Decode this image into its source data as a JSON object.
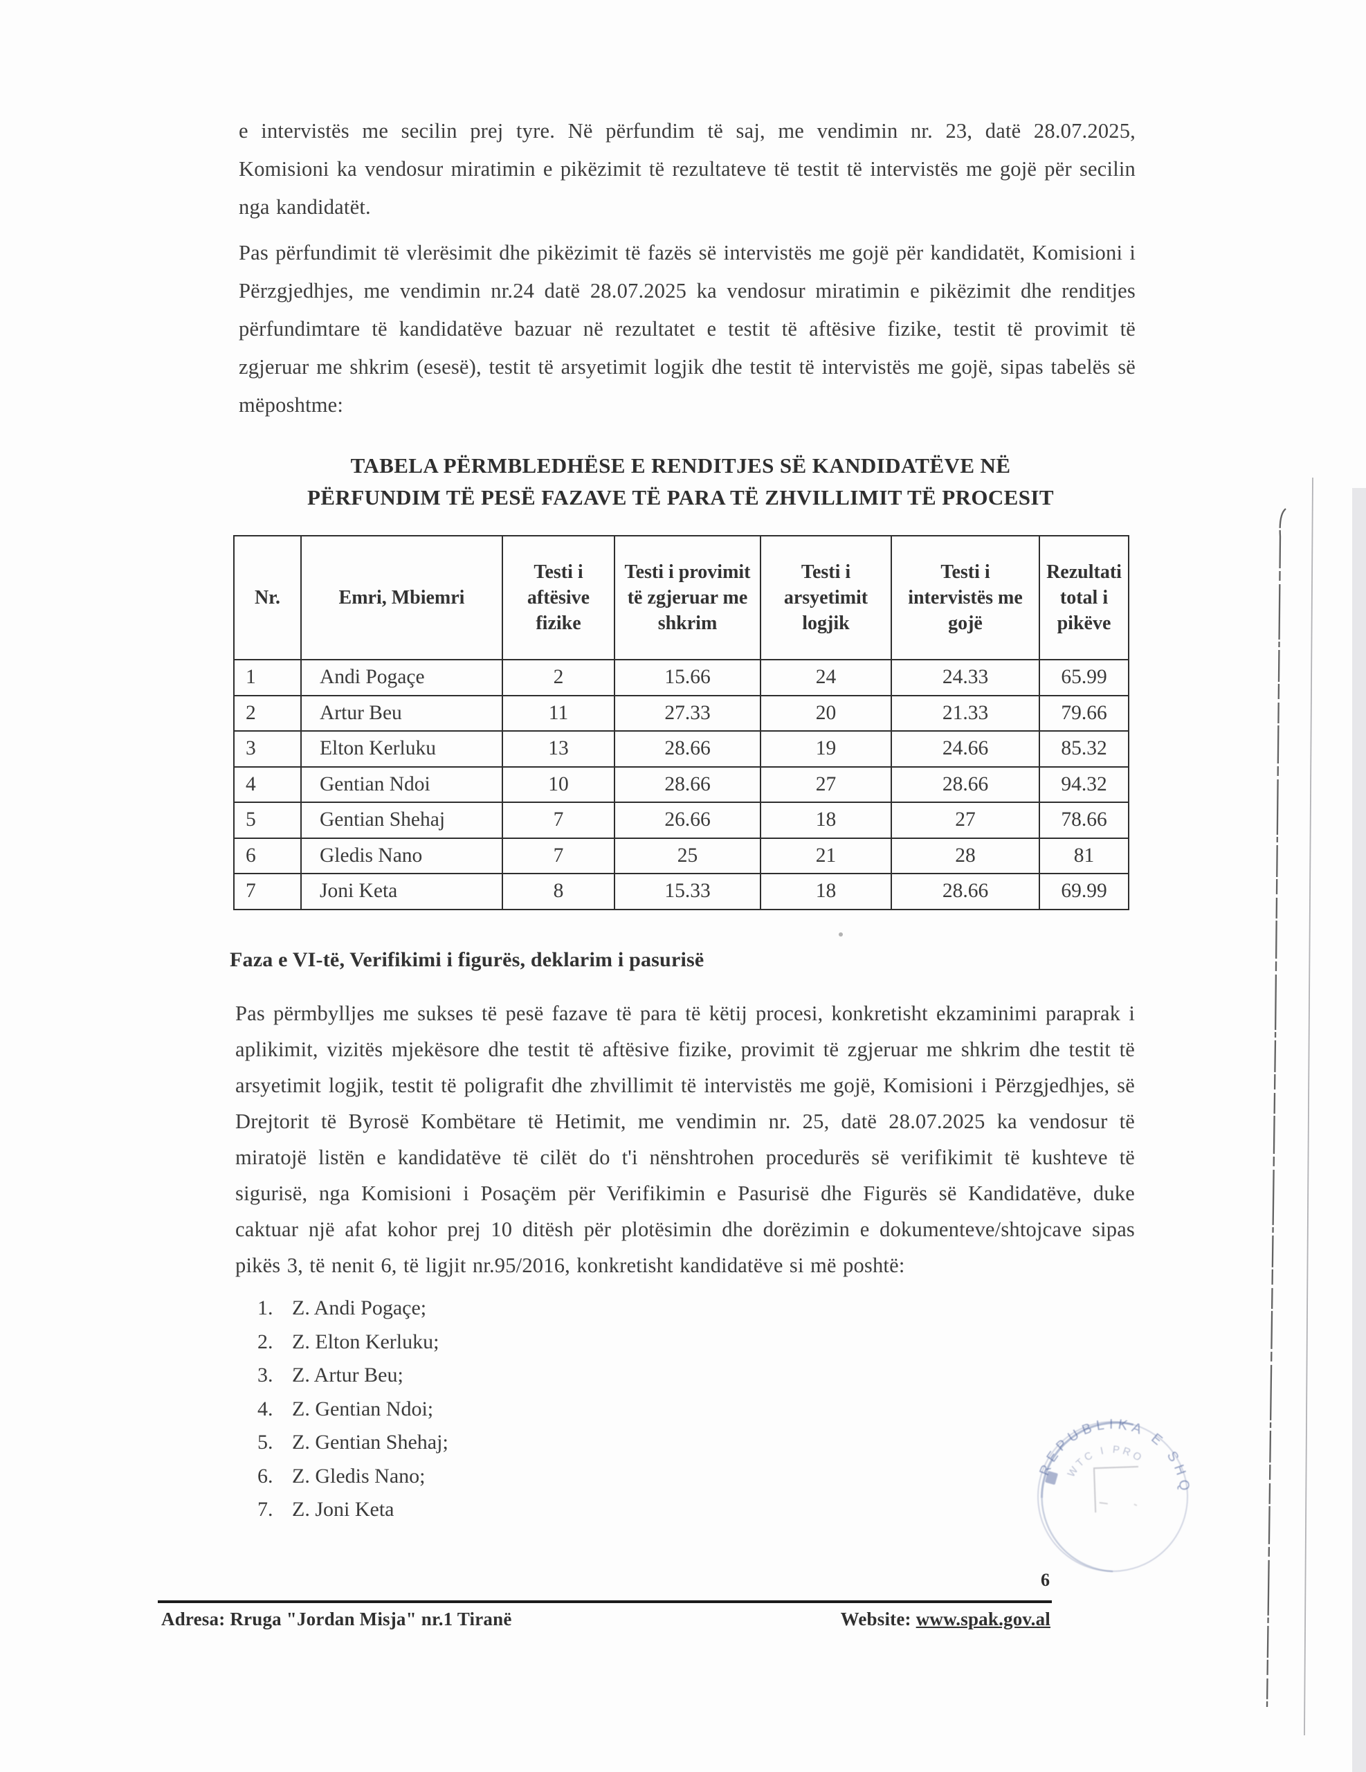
{
  "document": {
    "paragraphs": [
      "e intervistës me secilin prej tyre. Në përfundim të saj, me vendimin nr. 23, datë 28.07.2025, Komisioni ka vendosur miratimin e pikëzimit të rezultateve të testit të intervistës me gojë për secilin nga kandidatët.",
      "Pas përfundimit të vlerësimit dhe pikëzimit të fazës së intervistës me gojë për kandidatët, Komisioni i Përzgjedhjes, me vendimin nr.24 datë 28.07.2025 ka vendosur miratimin e pikëzimit dhe renditjes përfundimtare të kandidatëve bazuar në rezultatet e testit të aftësive fizike, testit të provimit të zgjeruar me shkrim (esesë), testit të arsyetimit logjik dhe testit të intervistës me gojë, sipas tabelës së mëposhtme:",
      "Pas përmbylljes me sukses të pesë fazave të para të këtij procesi, konkretisht ekzaminimi paraprak i aplikimit, vizitës mjekësore dhe testit të aftësive fizike, provimit të zgjeruar me shkrim dhe testit të arsyetimit logjik, testit të poligrafit dhe zhvillimit të intervistës me gojë, Komisioni i Përzgjedhjes, së Drejtorit të Byrosë Kombëtare të Hetimit, me vendimin nr. 25, datë 28.07.2025 ka vendosur të miratojë listën e kandidatëve të cilët do t'i nënshtrohen procedurës së verifikimit të kushteve të sigurisë, nga Komisioni i Posaçëm për Verifikimin e Pasurisë dhe Figurës së Kandidatëve, duke caktuar një afat kohor prej 10 ditësh për plotësimin  dhe dorëzimin e dokumenteve/shtojcave sipas pikës 3, të nenit 6, të ligjit nr.95/2016, konkretisht kandidatëve si më poshtë:"
    ],
    "table_title": [
      "TABELA PËRMBLEDHËSE E RENDITJES SË KANDIDATËVE NË",
      "PËRFUNDIM TË PESË FAZAVE TË PARA TË ZHVILLIMIT TË PROCESIT"
    ],
    "table": {
      "headers": [
        "Nr.",
        "Emri, Mbiemri",
        "Testi i aftësive fizike",
        "Testi i provimit të zgjeruar me shkrim",
        "Testi i arsyetimit logjik",
        "Testi i intervistës me gojë",
        "Rezultati total i pikëve"
      ],
      "rows": [
        [
          "1",
          "Andi Pogaçe",
          "2",
          "15.66",
          "24",
          "24.33",
          "65.99"
        ],
        [
          "2",
          "Artur Beu",
          "11",
          "27.33",
          "20",
          "21.33",
          "79.66"
        ],
        [
          "3",
          "Elton Kerluku",
          "13",
          "28.66",
          "19",
          "24.66",
          "85.32"
        ],
        [
          "4",
          "Gentian Ndoi",
          "10",
          "28.66",
          "27",
          "28.66",
          "94.32"
        ],
        [
          "5",
          "Gentian Shehaj",
          "7",
          "26.66",
          "18",
          "27",
          "78.66"
        ],
        [
          "6",
          "Gledis Nano",
          "7",
          "25",
          "21",
          "28",
          "81"
        ],
        [
          "7",
          "Joni Keta",
          "8",
          "15.33",
          "18",
          "28.66",
          "69.99"
        ]
      ]
    },
    "section_heading": "Faza e VI-të, Verifikimi i figurës, deklarim i pasurisë",
    "candidates": [
      {
        "no": "1.",
        "name": "Z. Andi Pogaçe;"
      },
      {
        "no": "2.",
        "name": "Z. Elton Kerluku;"
      },
      {
        "no": "3.",
        "name": "Z. Artur Beu;"
      },
      {
        "no": "4.",
        "name": "Z. Gentian Ndoi;"
      },
      {
        "no": "5.",
        "name": "Z. Gentian Shehaj;"
      },
      {
        "no": "6.",
        "name": "Z. Gledis Nano;"
      },
      {
        "no": "7.",
        "name": "Z. Joni Keta"
      }
    ],
    "stamp": {
      "arc_text": "REPUBLIKA E SHQ",
      "inner_text": "WTC I PRO"
    },
    "footer": {
      "page_number": "6",
      "address": "Adresa: Rruga \"Jordan Misja\" nr.1 Tiranë",
      "website_label": "Website:",
      "website_url": "www.spak.gov.al"
    },
    "stamp_color": "#7d8cb4",
    "ink_color": "#3a3a3a"
  }
}
